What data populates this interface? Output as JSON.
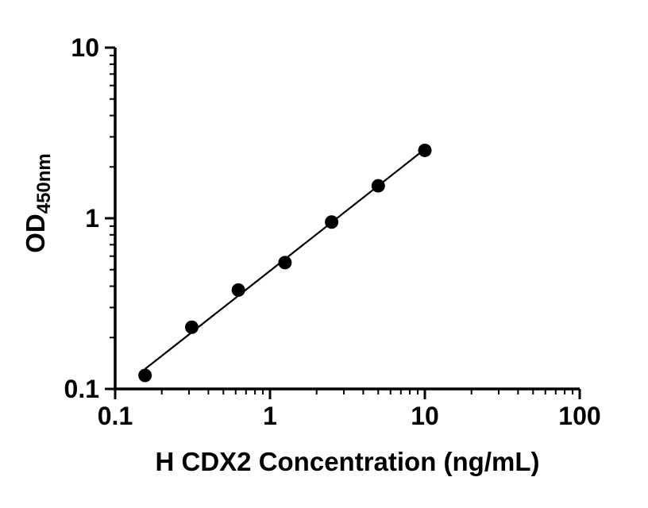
{
  "chart_data": {
    "type": "scatter",
    "title": "",
    "xlabel": "H CDX2 Concentration (ng/mL)",
    "ylabel_base": "OD",
    "ylabel_sub": "450nm",
    "x_scale": "log",
    "y_scale": "log",
    "xlim": [
      0.1,
      100
    ],
    "ylim": [
      0.1,
      10
    ],
    "x_ticks": [
      0.1,
      1,
      10,
      100
    ],
    "x_tick_labels": [
      "0.1",
      "1",
      "10",
      "100"
    ],
    "y_ticks": [
      0.1,
      1,
      10
    ],
    "y_tick_labels": [
      "0.1",
      "1",
      "10"
    ],
    "grid": false,
    "legend": "none",
    "trendline": "linear-loglog",
    "points": [
      {
        "x": 0.156,
        "y": 0.12
      },
      {
        "x": 0.3125,
        "y": 0.23
      },
      {
        "x": 0.625,
        "y": 0.38
      },
      {
        "x": 1.25,
        "y": 0.55
      },
      {
        "x": 2.5,
        "y": 0.95
      },
      {
        "x": 5,
        "y": 1.55
      },
      {
        "x": 10,
        "y": 2.5
      }
    ],
    "colors": {
      "axis": "#000000",
      "text": "#000000",
      "marker": "#000000",
      "line": "#000000",
      "background": "#ffffff"
    }
  }
}
